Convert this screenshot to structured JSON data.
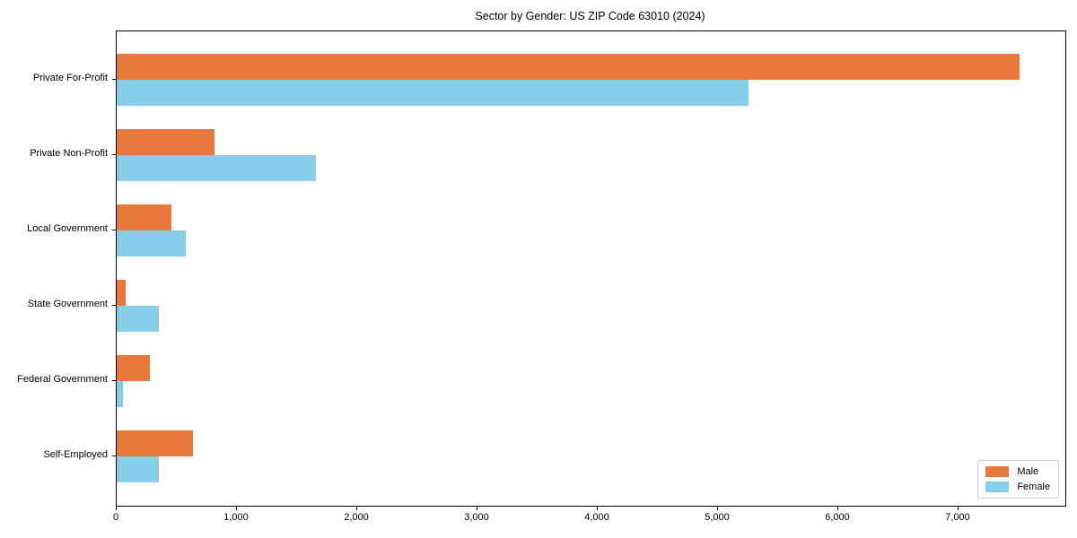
{
  "title": "Sector by Gender: US ZIP Code 63010 (2024)",
  "chart_data": {
    "type": "bar",
    "orientation": "horizontal",
    "title": "Sector by Gender: US ZIP Code 63010 (2024)",
    "categories": [
      "Private For-Profit",
      "Private Non-Profit",
      "Local Government",
      "State Government",
      "Federal Government",
      "Self-Employed"
    ],
    "series": [
      {
        "name": "Male",
        "color": "#E8793C",
        "values": [
          7510,
          810,
          455,
          75,
          275,
          635
        ]
      },
      {
        "name": "Female",
        "color": "#87CEEB",
        "values": [
          5255,
          1655,
          575,
          350,
          50,
          350
        ]
      }
    ],
    "xlabel": "",
    "ylabel": "",
    "xlim": [
      0,
      7888
    ],
    "xticks": [
      0,
      1000,
      2000,
      3000,
      4000,
      5000,
      6000,
      7000
    ],
    "xtick_labels": [
      "0",
      "1,000",
      "2,000",
      "3,000",
      "4,000",
      "5,000",
      "6,000",
      "7,000"
    ],
    "legend_position": "lower right",
    "grid": false
  }
}
